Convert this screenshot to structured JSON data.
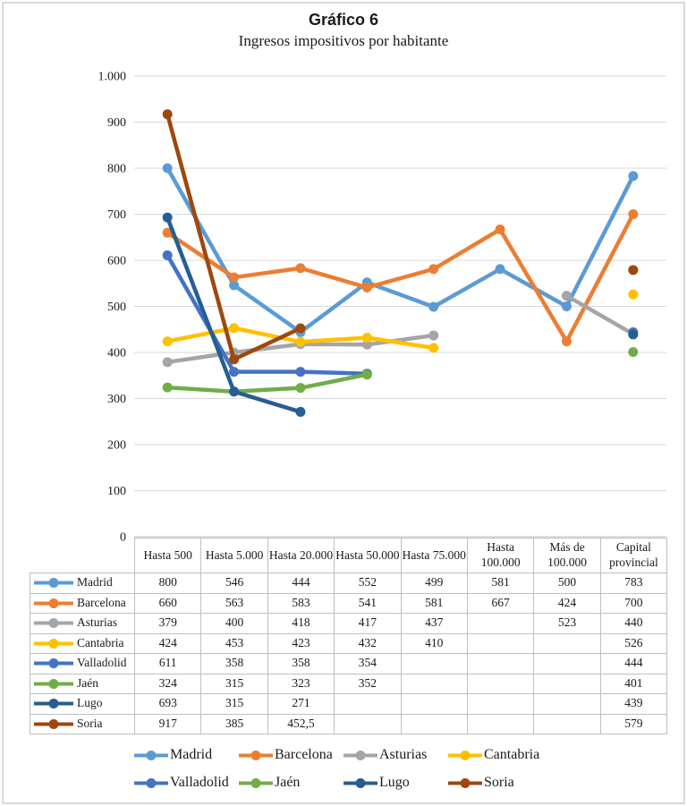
{
  "page": {
    "title": "Gráfico 6",
    "subtitle": "Ingresos impositivos por habitante"
  },
  "chart_data": {
    "type": "line",
    "title": "Gráfico 6",
    "subtitle": "Ingresos impositivos por habitante",
    "categories": [
      "Hasta 500",
      "Hasta 5.000",
      "Hasta 20.000",
      "Hasta 50.000",
      "Hasta 75.000",
      "Hasta 100.000",
      "Más de 100.000",
      "Capital provincial"
    ],
    "series": [
      {
        "name": "Madrid",
        "color": "#5B9BD5",
        "values": [
          800,
          546,
          444,
          552,
          499,
          581,
          500,
          783
        ]
      },
      {
        "name": "Barcelona",
        "color": "#ED7D31",
        "values": [
          660,
          563,
          583,
          541,
          581,
          667,
          424,
          700
        ]
      },
      {
        "name": "Asturias",
        "color": "#A5A5A5",
        "values": [
          379,
          400,
          418,
          417,
          437,
          null,
          523,
          440
        ]
      },
      {
        "name": "Cantabria",
        "color": "#FFC000",
        "values": [
          424,
          453,
          423,
          432,
          410,
          null,
          null,
          526
        ]
      },
      {
        "name": "Valladolid",
        "color": "#4472C4",
        "values": [
          611,
          358,
          358,
          354,
          null,
          null,
          null,
          444
        ]
      },
      {
        "name": "Jaén",
        "color": "#70AD47",
        "values": [
          324,
          315,
          323,
          352,
          null,
          null,
          null,
          401
        ]
      },
      {
        "name": "Lugo",
        "color": "#255E91",
        "values": [
          693,
          315,
          271,
          null,
          null,
          null,
          null,
          439
        ]
      },
      {
        "name": "Soria",
        "color": "#9E480E",
        "values": [
          917,
          385,
          452.5,
          null,
          null,
          null,
          null,
          579
        ]
      }
    ],
    "ylim": [
      0,
      1000
    ],
    "ytick_step": 100,
    "y_tick_labels": [
      "0",
      "100",
      "200",
      "300",
      "400",
      "500",
      "600",
      "700",
      "800",
      "900",
      "1.000"
    ],
    "grid": true,
    "legend_position": "bottom",
    "show_data_table": true,
    "colors": {
      "gridline": "#D9D9D9",
      "axis_line": "#BFBFBF",
      "table_border": "#BFBFBF",
      "text": "#1a1a1a"
    }
  }
}
